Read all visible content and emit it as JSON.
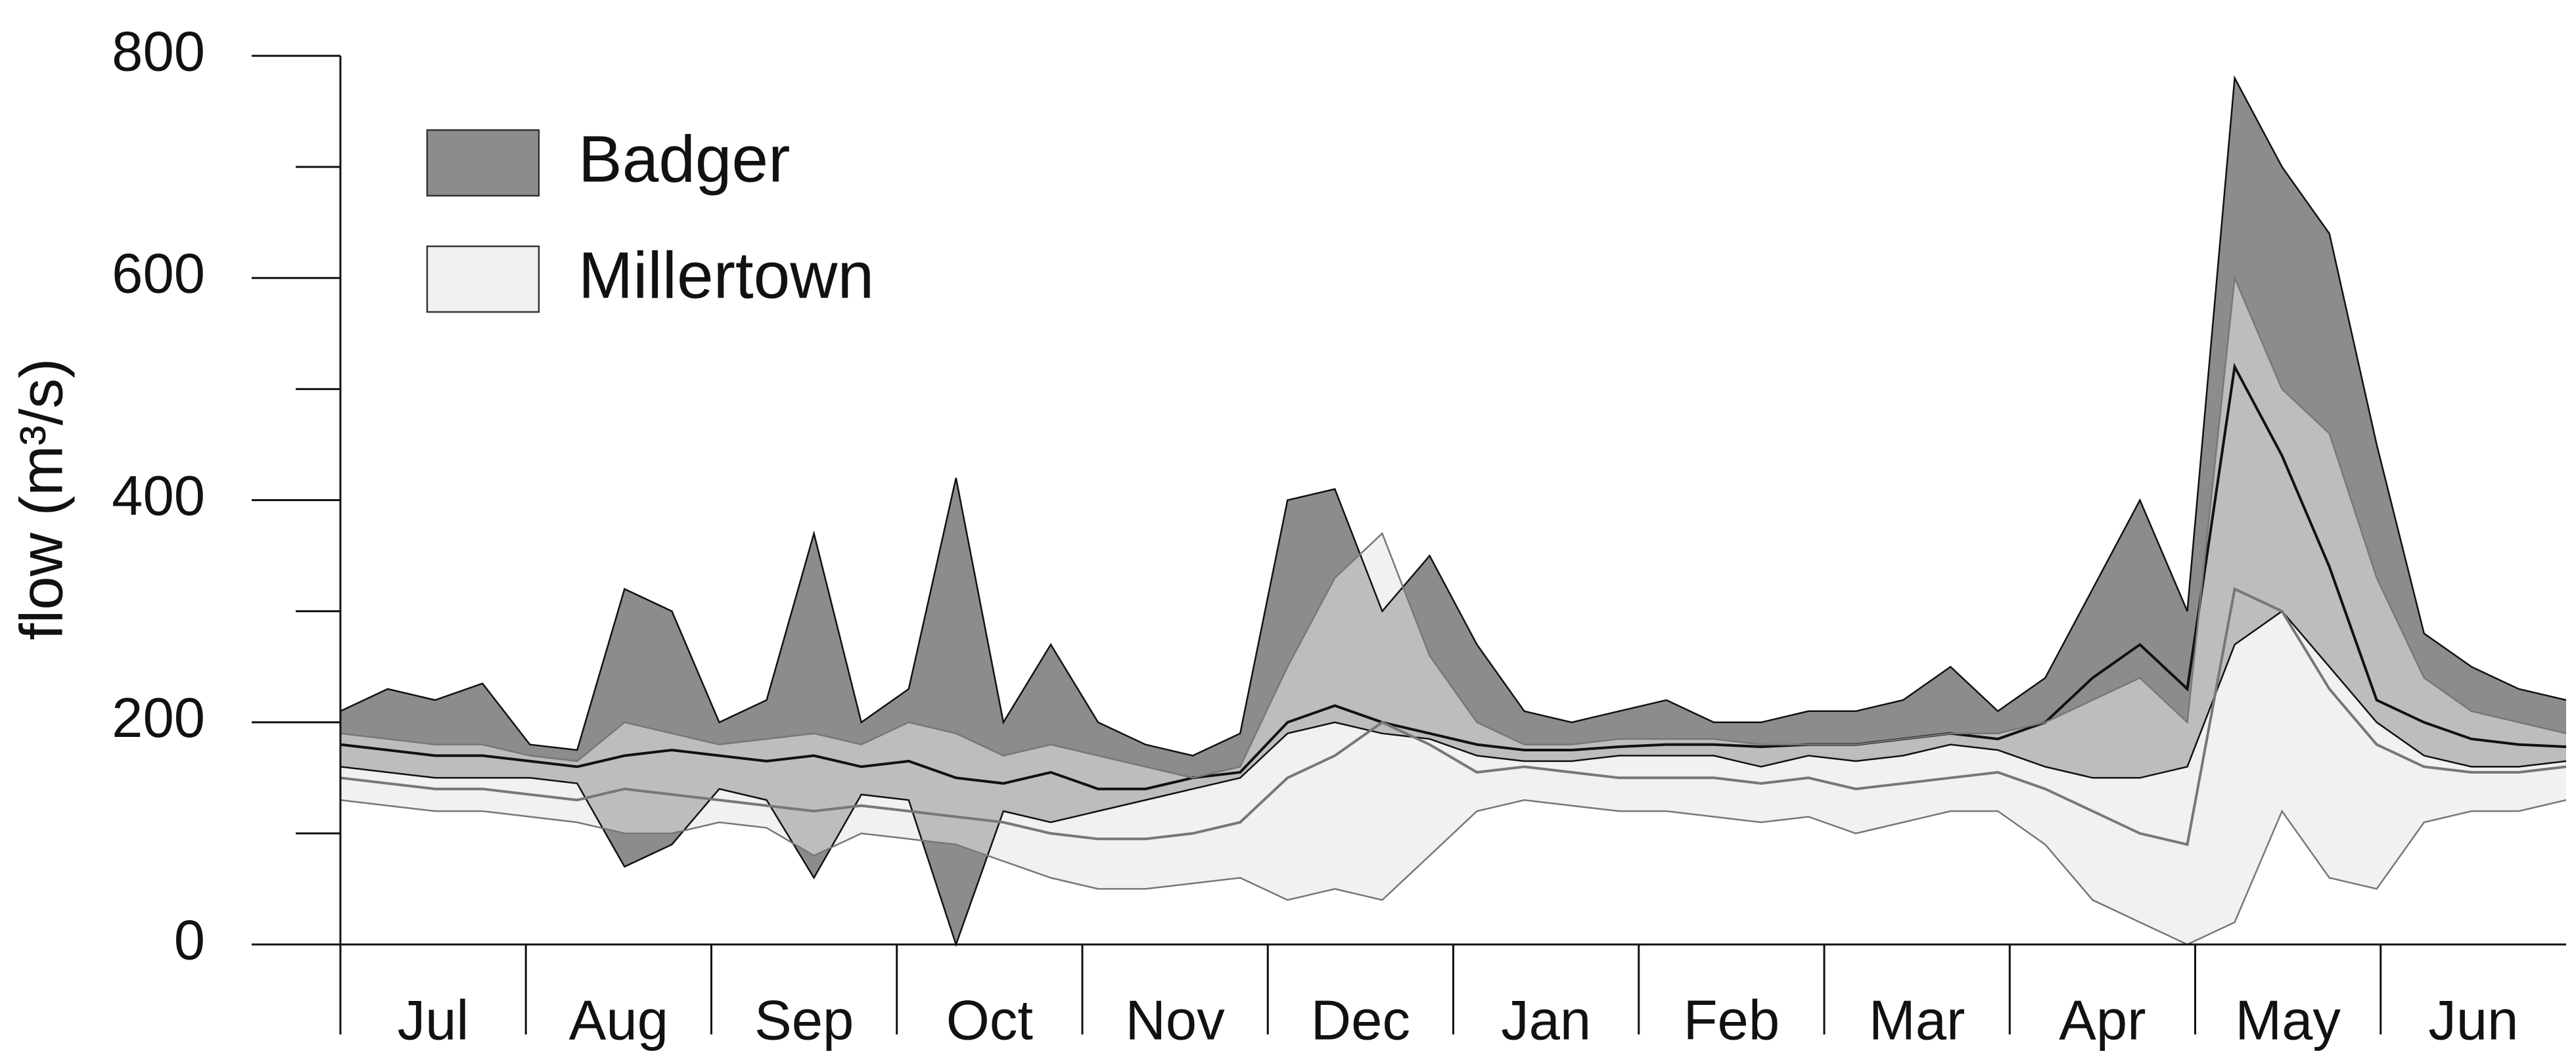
{
  "chart_data": {
    "type": "band",
    "y_label": "flow (m³/s)",
    "categories": [
      "Jul",
      "Aug",
      "Sep",
      "Oct",
      "Nov",
      "Dec",
      "Jan",
      "Feb",
      "Mar",
      "Apr",
      "May",
      "Jun"
    ],
    "ylim": [
      0,
      800
    ],
    "yticks": [
      0,
      200,
      400,
      600,
      800
    ],
    "yticks_minor": [
      100,
      300,
      500,
      700
    ],
    "legend": "upper-left",
    "series": [
      {
        "name": "Badger",
        "color": "#8c8c8c",
        "upper": [
          210,
          230,
          220,
          235,
          180,
          175,
          320,
          300,
          200,
          220,
          370,
          200,
          230,
          420,
          200,
          270,
          200,
          180,
          170,
          190,
          400,
          410,
          300,
          350,
          270,
          210,
          200,
          210,
          220,
          200,
          200,
          210,
          210,
          220,
          250,
          210,
          240,
          320,
          400,
          300,
          780,
          700,
          640,
          450,
          280,
          250,
          230,
          220
        ],
        "lower": [
          160,
          155,
          150,
          150,
          150,
          145,
          70,
          90,
          140,
          130,
          60,
          135,
          130,
          0,
          120,
          110,
          120,
          130,
          140,
          150,
          190,
          200,
          190,
          185,
          170,
          165,
          165,
          170,
          170,
          170,
          160,
          170,
          165,
          170,
          180,
          175,
          160,
          150,
          150,
          160,
          270,
          300,
          250,
          200,
          170,
          160,
          160,
          165
        ],
        "median": [
          180,
          175,
          170,
          170,
          165,
          160,
          170,
          175,
          170,
          165,
          170,
          160,
          165,
          150,
          145,
          155,
          140,
          140,
          150,
          155,
          200,
          215,
          200,
          190,
          180,
          175,
          175,
          178,
          180,
          180,
          178,
          180,
          180,
          185,
          190,
          185,
          200,
          240,
          270,
          230,
          520,
          440,
          340,
          220,
          200,
          185,
          180,
          178
        ]
      },
      {
        "name": "Millertown",
        "color": "#e6e6e6",
        "upper": [
          190,
          185,
          180,
          180,
          170,
          165,
          200,
          190,
          180,
          185,
          190,
          180,
          200,
          190,
          170,
          180,
          170,
          160,
          150,
          160,
          250,
          330,
          370,
          260,
          200,
          180,
          180,
          185,
          185,
          185,
          180,
          180,
          180,
          185,
          190,
          190,
          200,
          220,
          240,
          200,
          600,
          500,
          460,
          330,
          240,
          210,
          200,
          190
        ],
        "lower": [
          130,
          125,
          120,
          120,
          115,
          110,
          100,
          100,
          110,
          105,
          80,
          100,
          95,
          90,
          75,
          60,
          50,
          50,
          55,
          60,
          40,
          50,
          40,
          80,
          120,
          130,
          125,
          120,
          120,
          115,
          110,
          115,
          100,
          110,
          120,
          120,
          90,
          40,
          20,
          0,
          20,
          120,
          60,
          50,
          110,
          120,
          120,
          130
        ],
        "median": [
          150,
          145,
          140,
          140,
          135,
          130,
          140,
          135,
          130,
          125,
          120,
          125,
          120,
          115,
          110,
          100,
          95,
          95,
          100,
          110,
          150,
          170,
          200,
          180,
          155,
          160,
          155,
          150,
          150,
          150,
          145,
          150,
          140,
          145,
          150,
          155,
          140,
          120,
          100,
          90,
          320,
          300,
          230,
          180,
          160,
          155,
          155,
          160
        ]
      }
    ]
  }
}
